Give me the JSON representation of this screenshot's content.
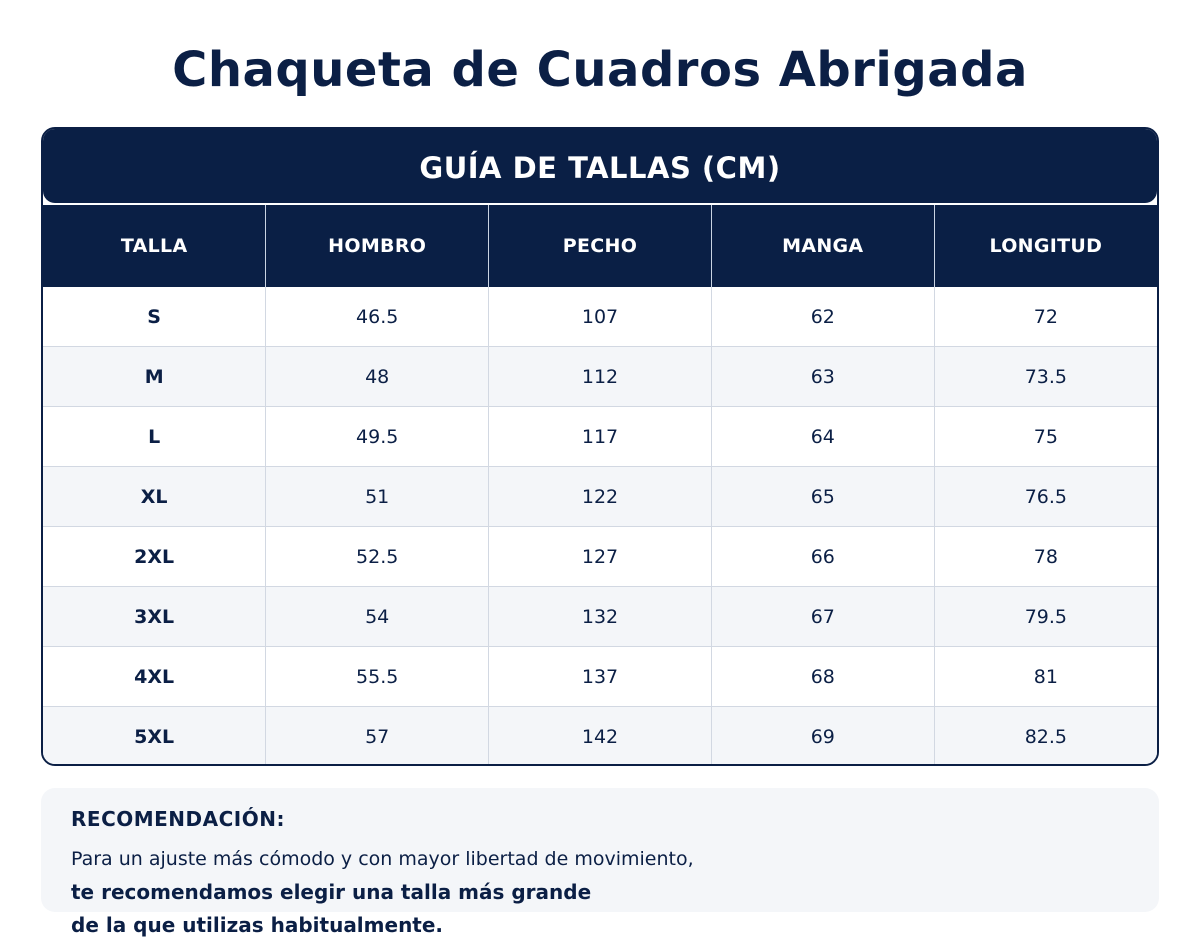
{
  "page": {
    "title": "Chaqueta de Cuadros Abrigada"
  },
  "size_guide": {
    "title": "GUÍA DE TALLAS (CM)",
    "columns": [
      "TALLA",
      "HOMBRO",
      "PECHO",
      "MANGA",
      "LONGITUD"
    ],
    "rows": [
      [
        "S",
        "46.5",
        "107",
        "62",
        "72"
      ],
      [
        "M",
        "48",
        "112",
        "63",
        "73.5"
      ],
      [
        "L",
        "49.5",
        "117",
        "64",
        "75"
      ],
      [
        "XL",
        "51",
        "122",
        "65",
        "76.5"
      ],
      [
        "2XL",
        "52.5",
        "127",
        "66",
        "78"
      ],
      [
        "3XL",
        "54",
        "132",
        "67",
        "79.5"
      ],
      [
        "4XL",
        "55.5",
        "137",
        "68",
        "81"
      ],
      [
        "5XL",
        "57",
        "142",
        "69",
        "82.5"
      ]
    ]
  },
  "recommendation": {
    "title": "RECOMENDACIÓN:",
    "line1": "Para un ajuste más cómodo y con mayor libertad de movimiento,",
    "line2": "te recomendamos elegir una talla más grande",
    "line3": "de la que utilizas habitualmente."
  },
  "colors": {
    "navy": "#0a1f45",
    "row_alt": "#f4f6f9",
    "grid": "#d2d8e2"
  }
}
